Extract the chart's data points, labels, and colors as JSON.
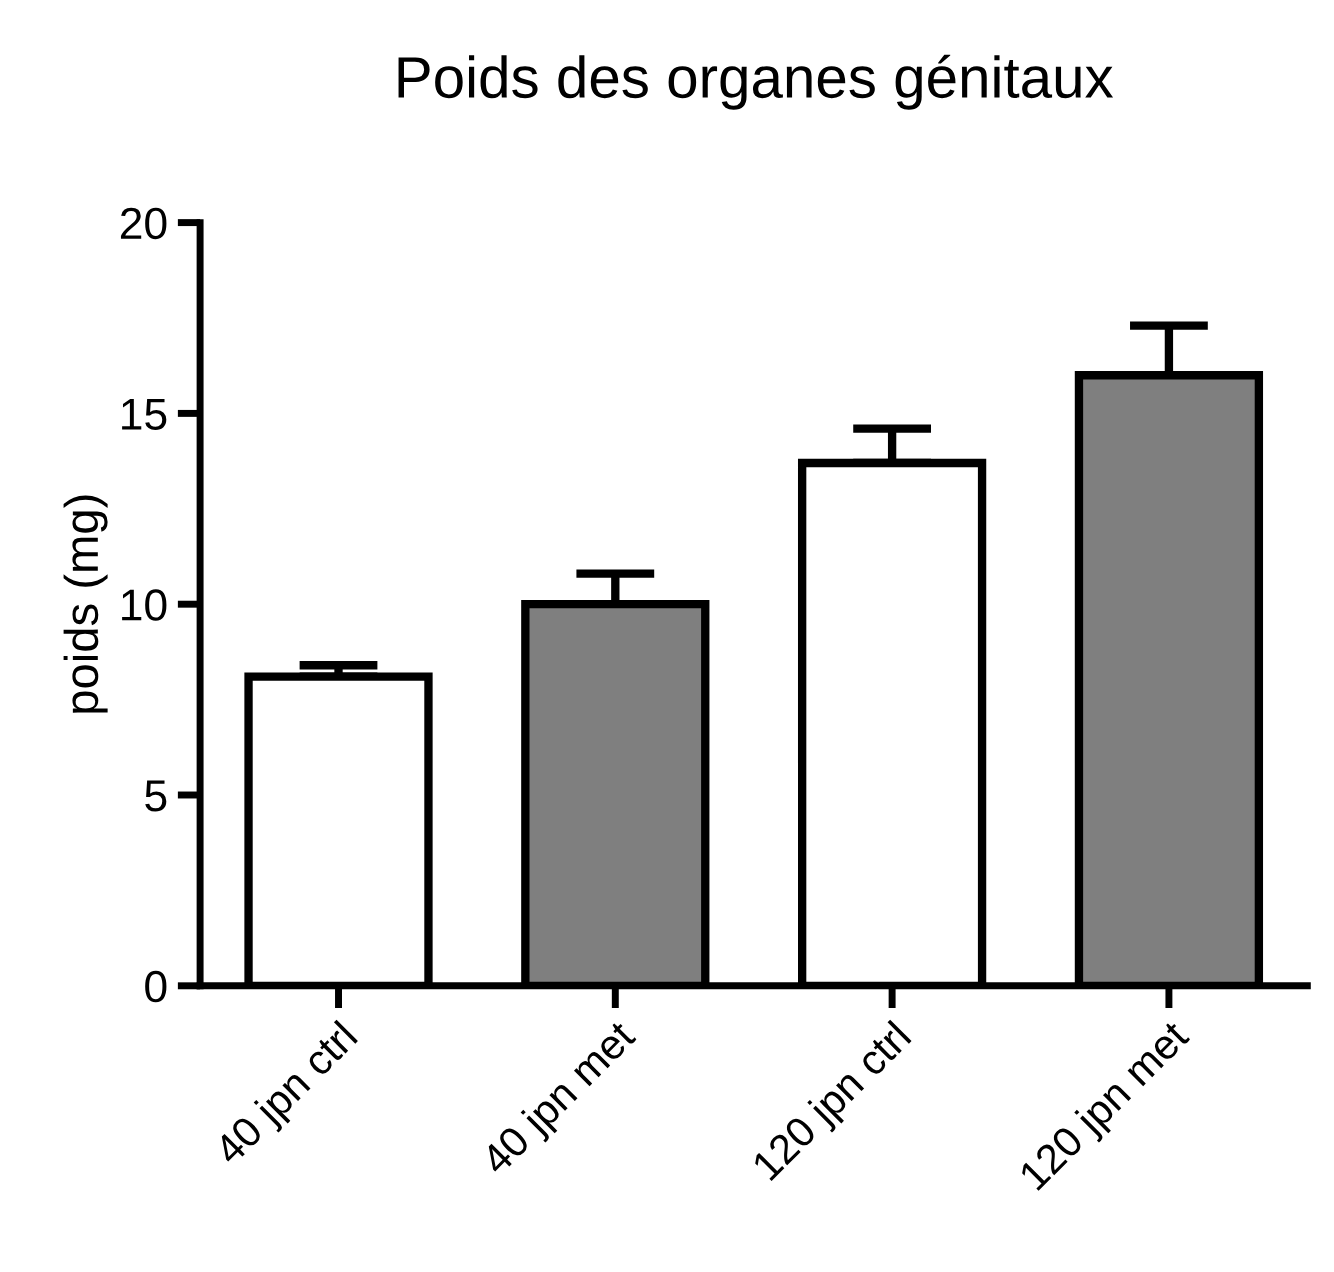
{
  "chart_data": {
    "type": "bar",
    "title": "Poids des organes génitaux",
    "ylabel": "poids (mg)",
    "categories": [
      "40 jpn ctrl",
      "40 jpn met",
      "120 jpn ctrl",
      "120 jpn met"
    ],
    "values": [
      8.1,
      10.0,
      13.7,
      16.0
    ],
    "errors": [
      [
        8.1,
        8.4
      ],
      [
        10.0,
        10.8
      ],
      [
        13.7,
        14.6
      ],
      [
        16.0,
        17.3
      ]
    ],
    "colors": [
      "#ffffff",
      "#7f7f7f",
      "#ffffff",
      "#7f7f7f"
    ],
    "ylim": [
      0,
      20
    ],
    "yticks": [
      0,
      5,
      10,
      15,
      20
    ],
    "grid": false,
    "legend": false
  }
}
